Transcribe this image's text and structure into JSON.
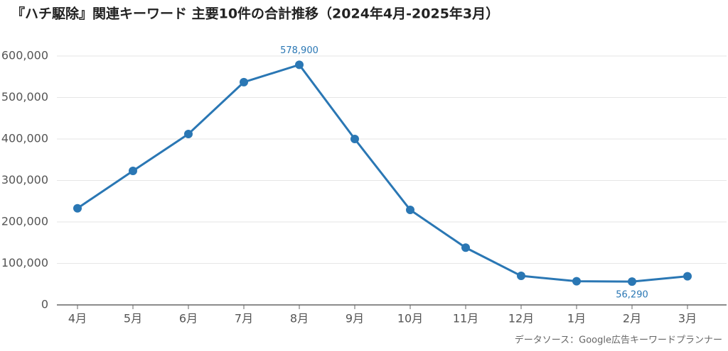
{
  "chart_data": {
    "type": "line",
    "title": "『ハチ駆除』関連キーワード 主要10件の合計推移（2024年4月-2025年3月）",
    "categories": [
      "4月",
      "5月",
      "6月",
      "7月",
      "8月",
      "9月",
      "10月",
      "11月",
      "12月",
      "1月",
      "2月",
      "3月"
    ],
    "series": [
      {
        "name": "合計",
        "color": "#2a77b4",
        "values": [
          233000,
          323000,
          412000,
          537000,
          578900,
          400000,
          229000,
          138000,
          70000,
          57000,
          56290,
          69000
        ],
        "value_labels": [
          null,
          null,
          null,
          null,
          "578,900",
          null,
          null,
          null,
          null,
          null,
          "56,290",
          null
        ]
      }
    ],
    "ylim": [
      0,
      600000
    ],
    "yticks": [
      0,
      {
        "value": 100000,
        "label": "100,000"
      },
      {
        "value": 200000,
        "label": "200,000"
      },
      {
        "value": 300000,
        "label": "300,000"
      },
      {
        "value": 400000,
        "label": "400,000"
      },
      {
        "value": 500000,
        "label": "500,000"
      },
      {
        "value": 600000,
        "label": "600,000"
      }
    ],
    "grid": true,
    "source": "データソース：Google広告キーワードプランナー"
  }
}
